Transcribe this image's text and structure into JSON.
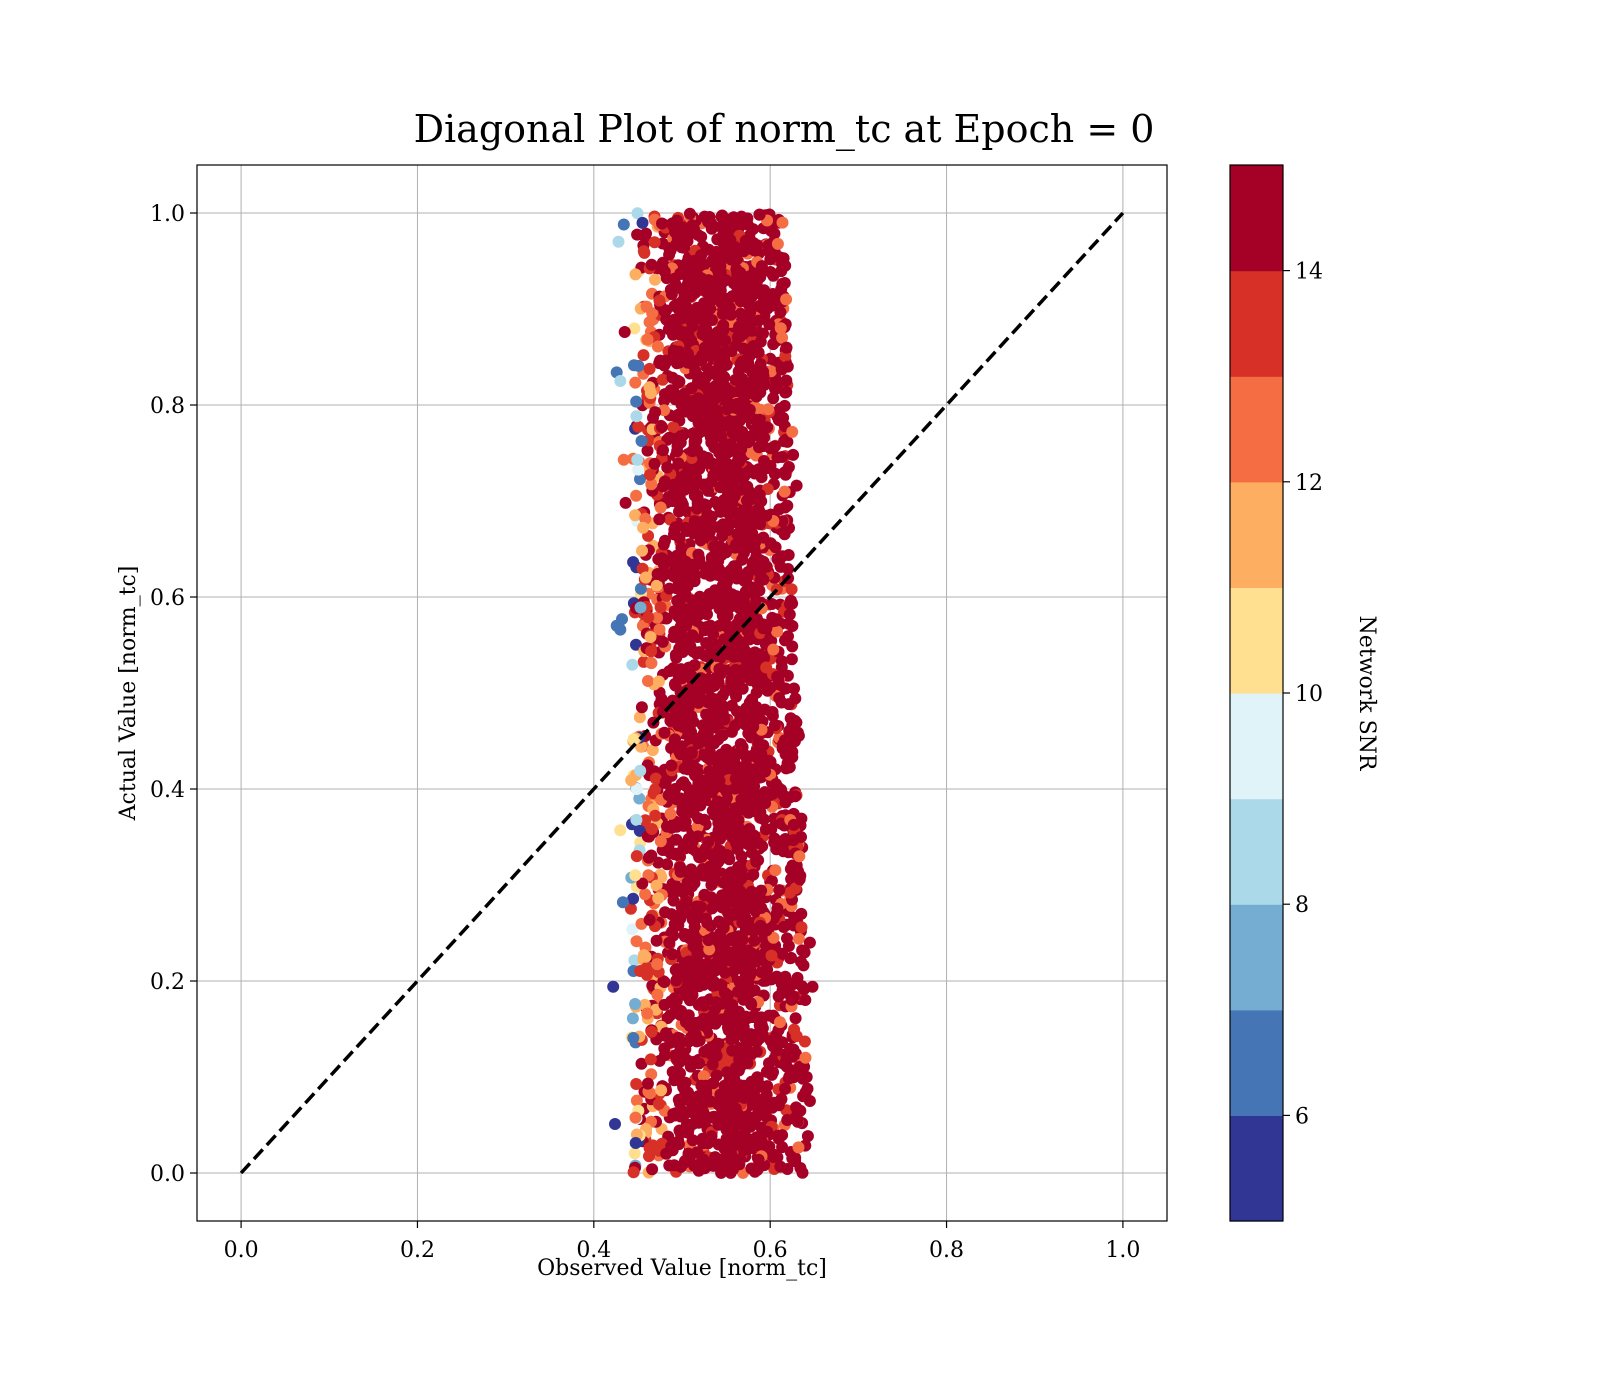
{
  "chart_data": {
    "type": "scatter",
    "title": "Diagonal Plot of norm_tc at Epoch = 0",
    "xlabel": "Observed Value [norm_tc]",
    "ylabel": "Actual Value [norm_tc]",
    "xlim": [
      -0.05,
      1.05
    ],
    "ylim": [
      -0.05,
      1.05
    ],
    "xticks": [
      "0.0",
      "0.2",
      "0.4",
      "0.6",
      "0.8",
      "1.0"
    ],
    "yticks": [
      "0.0",
      "0.2",
      "0.4",
      "0.6",
      "0.8",
      "1.0"
    ],
    "grid": true,
    "reference_line": {
      "style": "dashed",
      "color": "#000000",
      "x": [
        0.0,
        1.0
      ],
      "y": [
        0.0,
        1.0
      ]
    },
    "colorbar": {
      "label": "Network SNR",
      "range": [
        5,
        15
      ],
      "ticks": [
        "6",
        "8",
        "10",
        "12",
        "14"
      ],
      "colors": [
        "#313695",
        "#4575b4",
        "#74add1",
        "#abd9e9",
        "#e0f3f8",
        "#fee090",
        "#fdae61",
        "#f46d43",
        "#d73027",
        "#a50026"
      ]
    },
    "point_cloud": {
      "observed_range": [
        0.43,
        0.65
      ],
      "observed_center": 0.55,
      "actual_range": [
        0.0,
        1.0
      ],
      "dominant_snr": 15
    },
    "outlier_points": [
      {
        "x": 0.428,
        "y": 0.97,
        "snr": 8.5
      },
      {
        "x": 0.426,
        "y": 0.834,
        "snr": 6.5
      },
      {
        "x": 0.43,
        "y": 0.825,
        "snr": 8.3
      },
      {
        "x": 0.434,
        "y": 0.988,
        "snr": 6.6
      },
      {
        "x": 0.426,
        "y": 0.57,
        "snr": 6.4
      },
      {
        "x": 0.43,
        "y": 0.566,
        "snr": 6.9
      },
      {
        "x": 0.432,
        "y": 0.577,
        "snr": 6.4
      },
      {
        "x": 0.422,
        "y": 0.194,
        "snr": 5.4
      },
      {
        "x": 0.424,
        "y": 0.051,
        "snr": 5.3
      },
      {
        "x": 0.43,
        "y": 0.357,
        "snr": 10.2
      },
      {
        "x": 0.433,
        "y": 0.282,
        "snr": 6.5
      },
      {
        "x": 0.435,
        "y": 0.876,
        "snr": 14.8
      },
      {
        "x": 0.436,
        "y": 0.698,
        "snr": 14.8
      },
      {
        "x": 0.434,
        "y": 0.743,
        "snr": 12.5
      },
      {
        "x": 0.617,
        "y": 0.945,
        "snr": 15
      },
      {
        "x": 0.618,
        "y": 0.91,
        "snr": 12.1
      },
      {
        "x": 0.62,
        "y": 0.84,
        "snr": 15
      },
      {
        "x": 0.625,
        "y": 0.772,
        "snr": 12.5
      },
      {
        "x": 0.626,
        "y": 0.748,
        "snr": 15
      },
      {
        "x": 0.63,
        "y": 0.716,
        "snr": 15
      },
      {
        "x": 0.635,
        "y": 0.35,
        "snr": 15
      },
      {
        "x": 0.633,
        "y": 0.33,
        "snr": 12.5
      },
      {
        "x": 0.645,
        "y": 0.24,
        "snr": 15
      },
      {
        "x": 0.648,
        "y": 0.194,
        "snr": 15
      },
      {
        "x": 0.64,
        "y": 0.12,
        "snr": 12.3
      },
      {
        "x": 0.645,
        "y": 0.075,
        "snr": 15
      },
      {
        "x": 0.61,
        "y": 0.99,
        "snr": 15
      },
      {
        "x": 0.612,
        "y": 0.88,
        "snr": 12.5
      },
      {
        "x": 0.614,
        "y": 0.99,
        "snr": 12.3
      }
    ]
  }
}
